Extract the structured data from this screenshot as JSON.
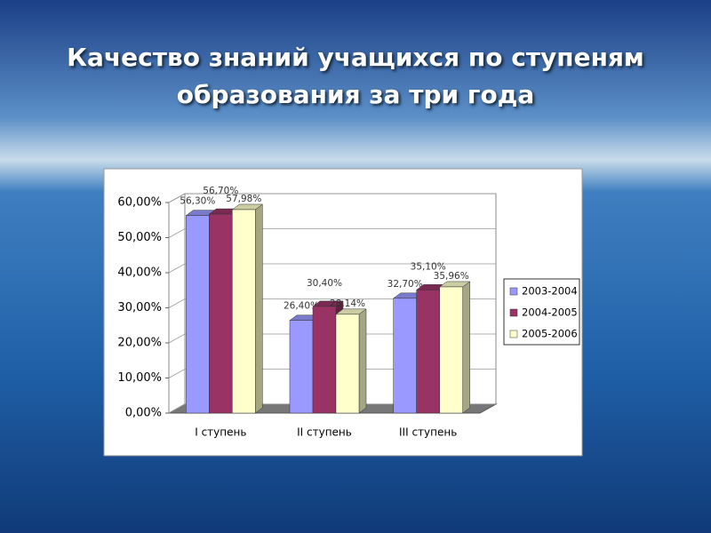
{
  "chart_data": {
    "type": "bar",
    "title": "Качество знаний учащихся по ступеням образования за три года",
    "categories": [
      "I ступень",
      "II ступень",
      "III ступень"
    ],
    "series": [
      {
        "name": "2003-2004",
        "color": "#9999ff",
        "values": [
          56.3,
          26.4,
          32.7
        ],
        "value_labels": [
          "56,30%",
          "26,40%",
          "32,70%"
        ]
      },
      {
        "name": "2004-2005",
        "color": "#993366",
        "values": [
          56.7,
          30.4,
          35.1
        ],
        "value_labels": [
          "56,70%",
          "30,40%",
          "35,10%"
        ]
      },
      {
        "name": "2005-2006",
        "color": "#ffffcc",
        "values": [
          57.98,
          28.14,
          35.96
        ],
        "value_labels": [
          "57,98%",
          "28,14%",
          "35,96%"
        ]
      }
    ],
    "ylim": [
      0,
      60
    ],
    "yticks": [
      {
        "value": 0,
        "label": "0,00%"
      },
      {
        "value": 10,
        "label": "10,00%"
      },
      {
        "value": 20,
        "label": "20,00%"
      },
      {
        "value": 30,
        "label": "30,00%"
      },
      {
        "value": 40,
        "label": "40,00%"
      },
      {
        "value": 50,
        "label": "50,00%"
      },
      {
        "value": 60,
        "label": "60,00%"
      }
    ],
    "grid": true,
    "legend": "right"
  }
}
